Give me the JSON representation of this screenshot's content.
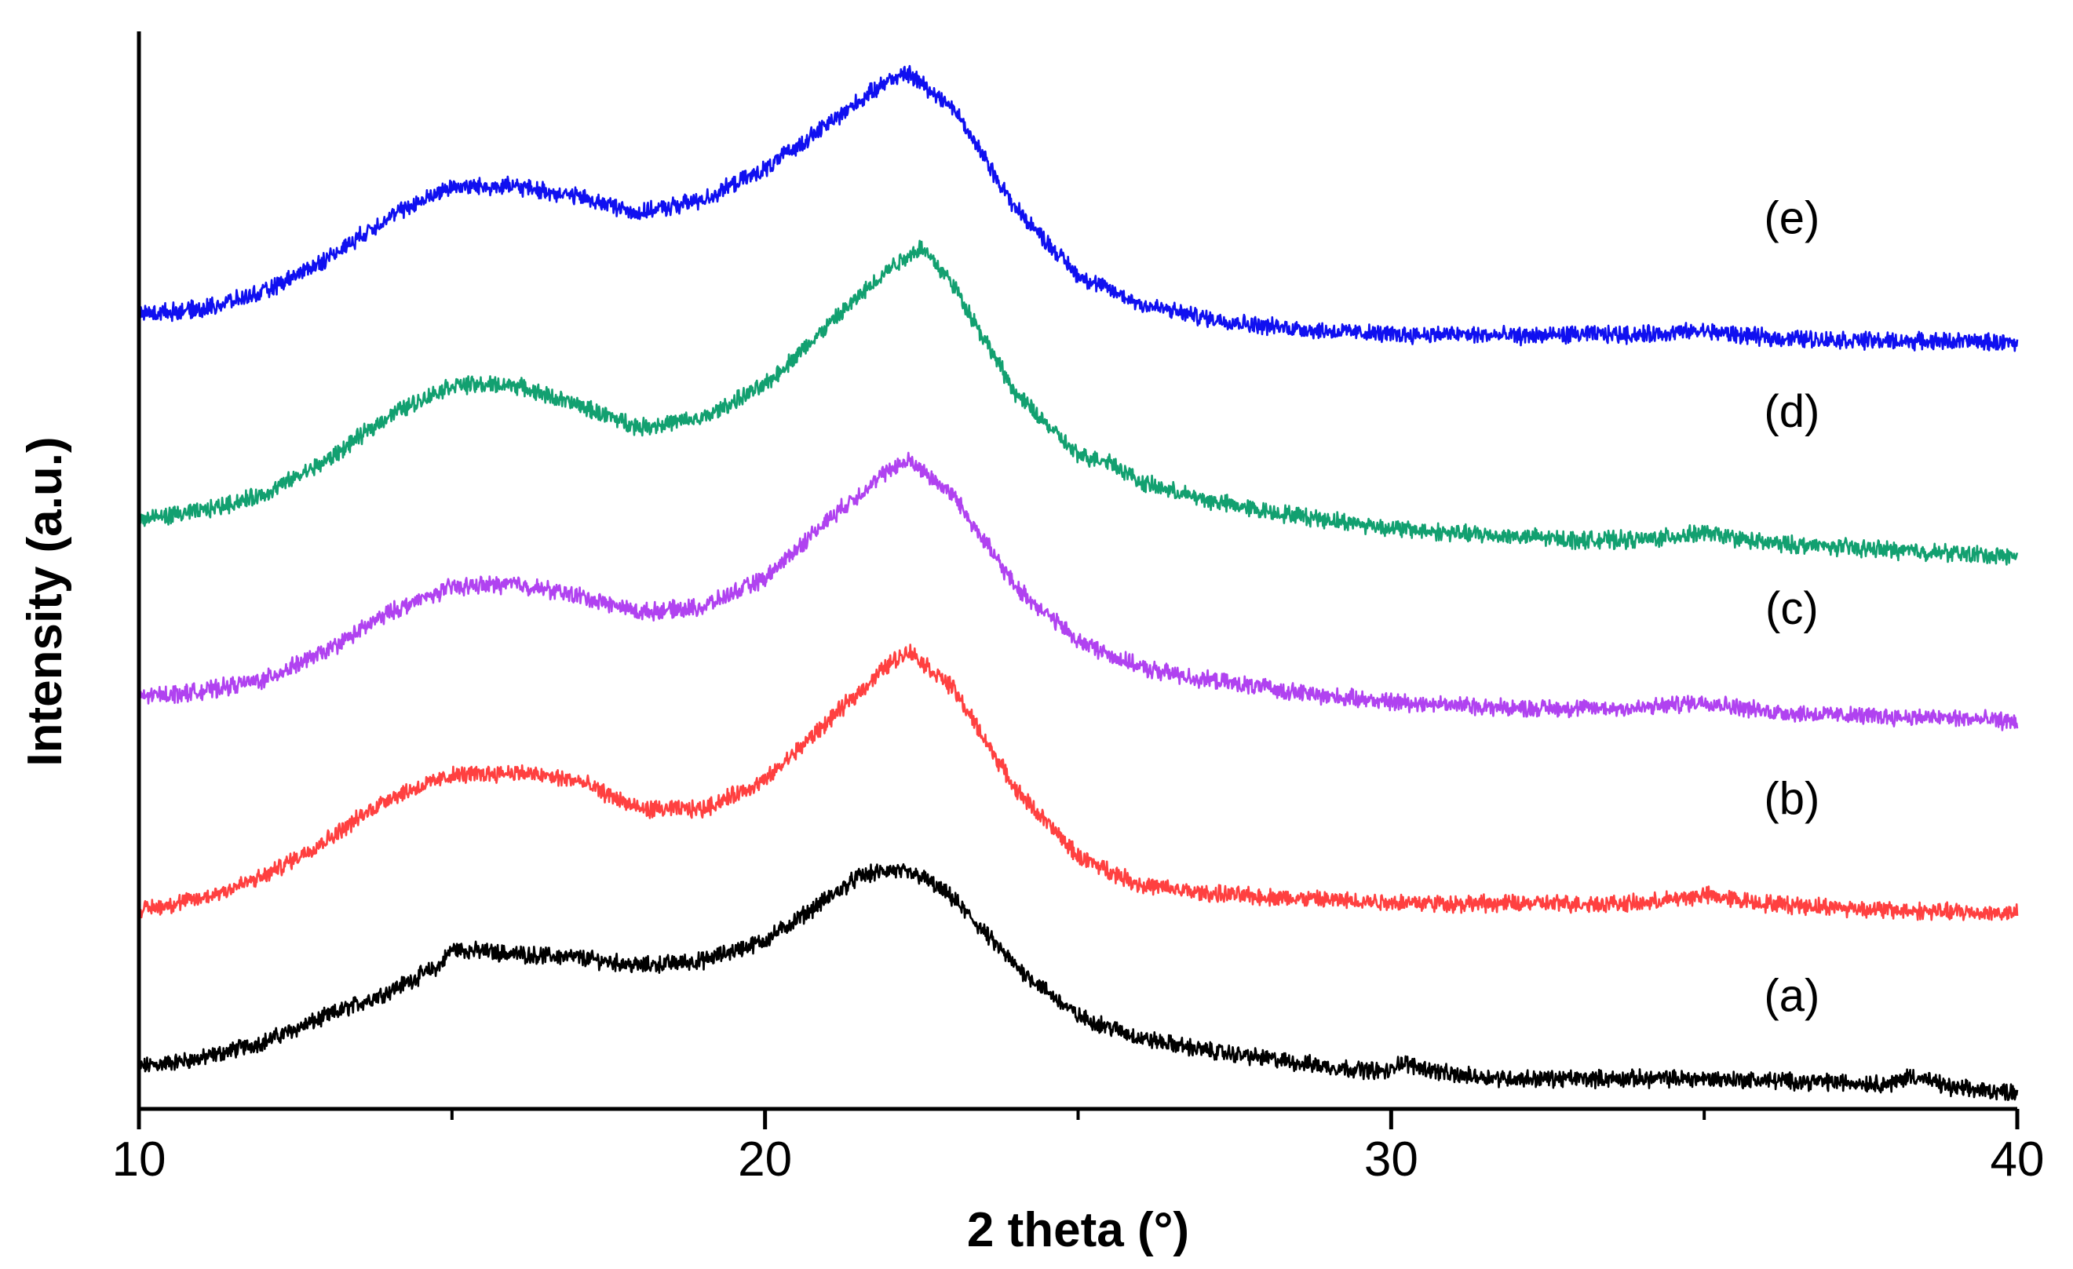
{
  "chart_data": {
    "type": "line",
    "title": "",
    "xlabel": "2 theta (°)",
    "ylabel": "Intensity (a.u.)",
    "xlim": [
      10,
      40
    ],
    "ylim": [
      0,
      6.4
    ],
    "xticks": [
      10,
      20,
      30,
      40
    ],
    "xtick_labels": [
      "10",
      "20",
      "30",
      "40"
    ],
    "x_minor_ticks": [
      15,
      25,
      35
    ],
    "y_ticks_shown": false,
    "grid": false,
    "note": "Stacked XRD patterns; y values are approximate relative intensities in arbitrary units, offsets included.",
    "series": [
      {
        "name": "(a)",
        "label": "(a)",
        "color": "#000000",
        "x": [
          10,
          11,
          12,
          13,
          14,
          14.8,
          15,
          16,
          17,
          18,
          19,
          20,
          21,
          21.5,
          22,
          22.5,
          23,
          23.5,
          24,
          24.5,
          25,
          26,
          27,
          28,
          29,
          30,
          30.1,
          31,
          32,
          33,
          34,
          35,
          36,
          37,
          38,
          38.3,
          39,
          40
        ],
        "y": [
          0.25,
          0.3,
          0.4,
          0.55,
          0.7,
          0.85,
          0.95,
          0.92,
          0.9,
          0.85,
          0.88,
          1.0,
          1.25,
          1.38,
          1.42,
          1.38,
          1.25,
          1.05,
          0.85,
          0.7,
          0.55,
          0.42,
          0.35,
          0.3,
          0.25,
          0.22,
          0.28,
          0.2,
          0.18,
          0.18,
          0.18,
          0.18,
          0.17,
          0.16,
          0.15,
          0.2,
          0.12,
          0.1
        ],
        "noise": 0.04
      },
      {
        "name": "(b)",
        "label": "(b)",
        "color": "#ff4040",
        "x": [
          10,
          11,
          12,
          13,
          14,
          15,
          16,
          17,
          18,
          19,
          20,
          21,
          22,
          22.3,
          23,
          24,
          25,
          26,
          27,
          28,
          29,
          30,
          31,
          32,
          33,
          34,
          35,
          36,
          37,
          38,
          39,
          40
        ],
        "y": [
          1.18,
          1.25,
          1.38,
          1.6,
          1.85,
          1.98,
          2.0,
          1.95,
          1.78,
          1.78,
          1.95,
          2.3,
          2.65,
          2.72,
          2.5,
          1.9,
          1.5,
          1.33,
          1.28,
          1.26,
          1.24,
          1.23,
          1.22,
          1.22,
          1.22,
          1.22,
          1.27,
          1.22,
          1.2,
          1.18,
          1.17,
          1.16
        ],
        "noise": 0.04
      },
      {
        "name": "(c)",
        "label": "(c)",
        "color": "#b042f0",
        "x": [
          10,
          11,
          12,
          13,
          14,
          15,
          16,
          17,
          18,
          19,
          20,
          21,
          22,
          22.3,
          23,
          24,
          25,
          26,
          27,
          28,
          29,
          30,
          31,
          32,
          33,
          34,
          35,
          36,
          37,
          38,
          39,
          40
        ],
        "y": [
          2.45,
          2.48,
          2.55,
          2.72,
          2.95,
          3.1,
          3.12,
          3.05,
          2.95,
          2.98,
          3.15,
          3.5,
          3.8,
          3.85,
          3.65,
          3.1,
          2.78,
          2.62,
          2.55,
          2.5,
          2.45,
          2.42,
          2.4,
          2.38,
          2.38,
          2.38,
          2.42,
          2.36,
          2.34,
          2.33,
          2.32,
          2.3
        ],
        "noise": 0.04
      },
      {
        "name": "(d)",
        "label": "(d)",
        "color": "#12a070",
        "x": [
          10,
          11,
          12,
          13,
          14,
          15,
          16,
          17,
          18,
          19,
          20,
          21,
          22,
          22.5,
          23,
          24,
          25,
          25.5,
          26,
          27,
          28,
          29,
          30,
          31,
          32,
          33,
          34,
          35,
          36,
          37,
          38,
          39,
          40
        ],
        "y": [
          3.5,
          3.55,
          3.65,
          3.85,
          4.12,
          4.3,
          4.3,
          4.18,
          4.05,
          4.1,
          4.3,
          4.65,
          5.0,
          5.12,
          4.9,
          4.25,
          3.88,
          3.85,
          3.72,
          3.62,
          3.55,
          3.5,
          3.45,
          3.42,
          3.4,
          3.38,
          3.38,
          3.42,
          3.36,
          3.34,
          3.32,
          3.3,
          3.28
        ],
        "noise": 0.04
      },
      {
        "name": "(e)",
        "label": "(e)",
        "color": "#1010f0",
        "x": [
          10,
          11,
          12,
          13,
          14,
          15,
          16,
          17,
          18,
          19,
          20,
          21,
          22,
          22.3,
          23,
          24,
          25,
          26,
          27,
          28,
          29,
          30,
          31,
          32,
          33,
          34,
          35,
          36,
          37,
          38,
          39,
          40
        ],
        "y": [
          4.72,
          4.75,
          4.85,
          5.05,
          5.3,
          5.48,
          5.48,
          5.42,
          5.32,
          5.4,
          5.58,
          5.85,
          6.12,
          6.15,
          5.95,
          5.35,
          4.95,
          4.78,
          4.7,
          4.65,
          4.62,
          4.6,
          4.6,
          4.59,
          4.6,
          4.6,
          4.62,
          4.58,
          4.57,
          4.56,
          4.56,
          4.55
        ],
        "noise": 0.04
      }
    ],
    "annotations": [
      {
        "text": "(a)",
        "x": 36.4,
        "y": 0.58
      },
      {
        "text": "(b)",
        "x": 36.4,
        "y": 1.75
      },
      {
        "text": "(c)",
        "x": 36.4,
        "y": 2.88
      },
      {
        "text": "(d)",
        "x": 36.4,
        "y": 4.05
      },
      {
        "text": "(e)",
        "x": 36.4,
        "y": 5.2
      }
    ]
  }
}
